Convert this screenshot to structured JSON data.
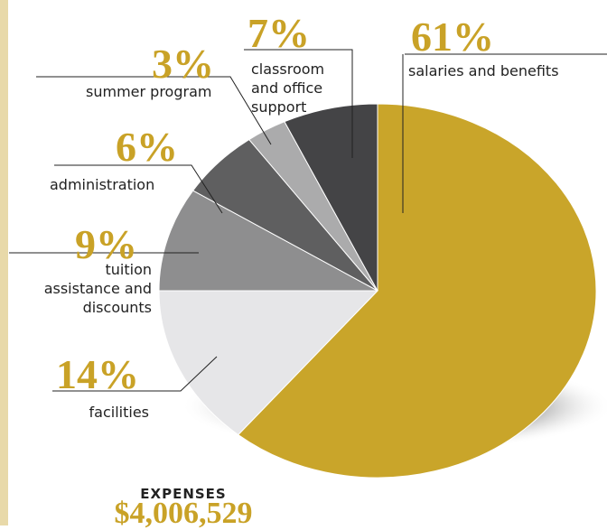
{
  "chart_data": {
    "type": "pie",
    "title": "EXPENSES",
    "subtitle": "$4,006,529",
    "categories": [
      "salaries and benefits",
      "facilities",
      "tuition assistance and discounts",
      "administration",
      "summer program",
      "classroom and office support"
    ],
    "values": [
      61,
      14,
      9,
      6,
      3,
      7
    ],
    "value_labels": [
      "61%",
      "14%",
      "9%",
      "6%",
      "3%",
      "7%"
    ],
    "colors": [
      "#c9a52a",
      "#e6e6e8",
      "#8e8e8f",
      "#5f5f60",
      "#ababac",
      "#444446"
    ]
  }
}
